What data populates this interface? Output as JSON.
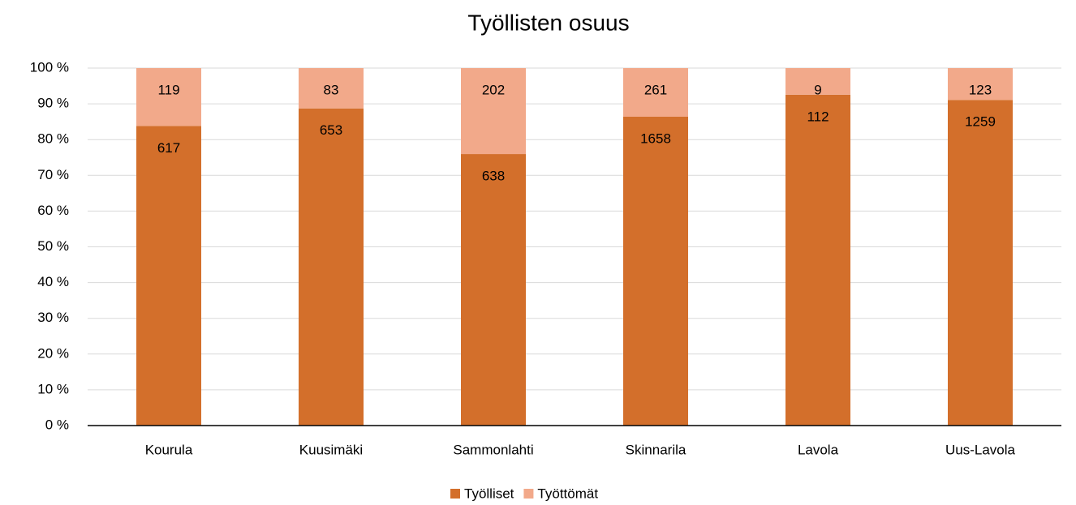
{
  "chart_data": {
    "type": "bar",
    "stacked": "percent",
    "title": "Työllisten osuus",
    "categories": [
      "Kourula",
      "Kuusimäki",
      "Sammonlahti",
      "Skinnarila",
      "Lavola",
      "Uus-Lavola"
    ],
    "series": [
      {
        "name": "Työlliset",
        "color": "#d36f2b",
        "values": [
          617,
          653,
          638,
          1658,
          112,
          1259
        ]
      },
      {
        "name": "Työttömät",
        "color": "#f2a98a",
        "values": [
          119,
          83,
          202,
          261,
          9,
          123
        ]
      }
    ],
    "ylim": [
      0,
      100
    ],
    "yticks": [
      {
        "value": 0,
        "label": "0 %"
      },
      {
        "value": 10,
        "label": "10 %"
      },
      {
        "value": 20,
        "label": "20 %"
      },
      {
        "value": 30,
        "label": "30 %"
      },
      {
        "value": 40,
        "label": "40 %"
      },
      {
        "value": 50,
        "label": "50 %"
      },
      {
        "value": 60,
        "label": "60 %"
      },
      {
        "value": 70,
        "label": "70 %"
      },
      {
        "value": 80,
        "label": "80 %"
      },
      {
        "value": 90,
        "label": "90 %"
      },
      {
        "value": 100,
        "label": "100 %"
      }
    ],
    "grid": true,
    "legend": "bottom",
    "data_labels": true
  }
}
